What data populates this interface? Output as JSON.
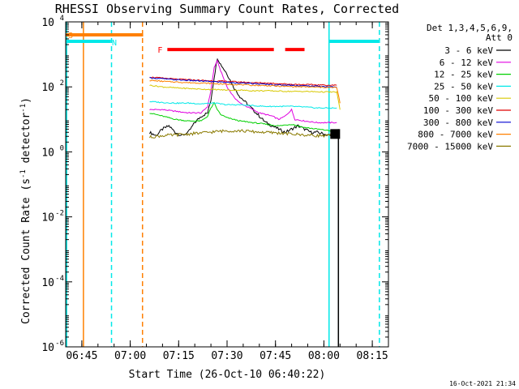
{
  "chart_data": {
    "type": "line",
    "title": "RHESSI Observing Summary Count Rates, Corrected",
    "xlabel": "Start Time (26-Oct-10 06:40:22)",
    "ylabel_main": "Corrected Count Rate (s",
    "ylabel_sup1": "-1",
    "ylabel_mid": " detector",
    "ylabel_sup2": "-1",
    "ylabel_end": ")",
    "yscale": "log",
    "ylim_exp": [
      -6,
      4
    ],
    "y_ticks": [
      {
        "exp": -6,
        "label": "10",
        "sup": "-6"
      },
      {
        "exp": -4,
        "label": "10",
        "sup": "-4"
      },
      {
        "exp": -2,
        "label": "10",
        "sup": "-2"
      },
      {
        "exp": 0,
        "label": "10",
        "sup": "0"
      },
      {
        "exp": 2,
        "label": "10",
        "sup": "2"
      },
      {
        "exp": 4,
        "label": "10",
        "sup": "4"
      }
    ],
    "xlim_min": [
      40,
      140
    ],
    "x_ticks": [
      {
        "min": 45,
        "label": "06:45"
      },
      {
        "min": 60,
        "label": "07:00"
      },
      {
        "min": 75,
        "label": "07:15"
      },
      {
        "min": 90,
        "label": "07:30"
      },
      {
        "min": 105,
        "label": "07:45"
      },
      {
        "min": 120,
        "label": "08:00"
      },
      {
        "min": 135,
        "label": "08:15"
      }
    ],
    "legend": {
      "header": [
        "Det 1,3,4,5,6,9,",
        "Att 0"
      ],
      "placement": "right",
      "entries": [
        {
          "label": "3 - 6 keV",
          "color": "#000000"
        },
        {
          "label": "6 - 12 keV",
          "color": "#e000e0"
        },
        {
          "label": "12 - 25 keV",
          "color": "#00d000"
        },
        {
          "label": "25 - 50 keV",
          "color": "#00e8e8"
        },
        {
          "label": "50 - 100 keV",
          "color": "#d8c800"
        },
        {
          "label": "100 - 300 keV",
          "color": "#e00000"
        },
        {
          "label": "300 - 800 keV",
          "color": "#0000d0"
        },
        {
          "label": "800 - 7000 keV",
          "color": "#ff8000"
        },
        {
          "label": "7000 - 15000 keV",
          "color": "#8a7a00"
        }
      ]
    },
    "intervals": {
      "saa": {
        "label": "S",
        "start": 40,
        "end": 64,
        "color": "#ff8000",
        "y_exp": 3.6
      },
      "night": {
        "label": "N",
        "start": 40,
        "end": 54,
        "color": "#00e8e8",
        "y_exp": 3.4
      },
      "night2": {
        "label": "",
        "start": 121.5,
        "end": 137,
        "color": "#00e8e8",
        "y_exp": 3.4
      },
      "flare": {
        "label": "F",
        "segments": [
          [
            71.5,
            104.5
          ],
          [
            108,
            114
          ]
        ],
        "color": "#ff0000",
        "y_exp": 3.15
      }
    },
    "vertical_lines": [
      {
        "min": 40.3,
        "color": "#00e8e8",
        "style": "solid"
      },
      {
        "min": 45.5,
        "color": "#ff8000",
        "style": "solid"
      },
      {
        "min": 54.2,
        "color": "#00e8e8",
        "style": "dashed"
      },
      {
        "min": 63.8,
        "color": "#ff8000",
        "style": "dashed"
      },
      {
        "min": 121.6,
        "color": "#00e8e8",
        "style": "solid"
      },
      {
        "min": 137.2,
        "color": "#00e8e8",
        "style": "dashed"
      }
    ],
    "series": [
      {
        "key": "3-6",
        "color": "#000000",
        "points": [
          [
            66,
            0.6
          ],
          [
            68,
            0.5
          ],
          [
            70,
            0.7
          ],
          [
            72,
            0.8
          ],
          [
            74,
            0.6
          ],
          [
            76,
            0.5
          ],
          [
            78,
            0.6
          ],
          [
            80,
            0.9
          ],
          [
            82,
            1.1
          ],
          [
            84,
            1.2
          ],
          [
            85,
            1.6
          ],
          [
            86,
            2.3
          ],
          [
            87,
            2.9
          ],
          [
            88,
            2.7
          ],
          [
            90,
            2.4
          ],
          [
            92,
            2.0
          ],
          [
            94,
            1.7
          ],
          [
            96,
            1.5
          ],
          [
            98,
            1.3
          ],
          [
            100,
            1.1
          ],
          [
            102,
            0.9
          ],
          [
            104,
            0.8
          ],
          [
            106,
            0.7
          ],
          [
            108,
            0.6
          ],
          [
            110,
            0.7
          ],
          [
            112,
            0.8
          ],
          [
            114,
            0.7
          ],
          [
            116,
            0.6
          ],
          [
            118,
            0.6
          ],
          [
            120,
            0.55
          ],
          [
            122,
            0.5
          ],
          [
            123,
            0.5
          ]
        ]
      },
      {
        "key": "6-12",
        "color": "#e000e0",
        "points": [
          [
            66,
            1.3
          ],
          [
            70,
            1.3
          ],
          [
            74,
            1.25
          ],
          [
            78,
            1.2
          ],
          [
            82,
            1.2
          ],
          [
            84,
            1.4
          ],
          [
            85,
            1.9
          ],
          [
            86,
            2.6
          ],
          [
            87,
            2.8
          ],
          [
            88,
            2.5
          ],
          [
            90,
            2.0
          ],
          [
            92,
            1.7
          ],
          [
            94,
            1.5
          ],
          [
            96,
            1.4
          ],
          [
            100,
            1.2
          ],
          [
            104,
            1.1
          ],
          [
            106,
            1.0
          ],
          [
            108,
            1.1
          ],
          [
            110,
            1.3
          ],
          [
            111,
            1.0
          ],
          [
            114,
            0.95
          ],
          [
            118,
            0.9
          ],
          [
            122,
            0.9
          ],
          [
            124,
            0.9
          ]
        ]
      },
      {
        "key": "12-25",
        "color": "#00d000",
        "points": [
          [
            66,
            1.2
          ],
          [
            70,
            1.1
          ],
          [
            74,
            1.0
          ],
          [
            78,
            0.95
          ],
          [
            82,
            0.95
          ],
          [
            84,
            1.1
          ],
          [
            85,
            1.35
          ],
          [
            86,
            1.5
          ],
          [
            87,
            1.3
          ],
          [
            88,
            1.15
          ],
          [
            90,
            1.05
          ],
          [
            94,
            0.95
          ],
          [
            98,
            0.9
          ],
          [
            102,
            0.85
          ],
          [
            106,
            0.8
          ],
          [
            110,
            0.85
          ],
          [
            114,
            0.75
          ],
          [
            118,
            0.7
          ],
          [
            122,
            0.65
          ],
          [
            124,
            0.6
          ]
        ]
      },
      {
        "key": "25-50",
        "color": "#00e8e8",
        "points": [
          [
            66,
            1.55
          ],
          [
            70,
            1.52
          ],
          [
            74,
            1.5
          ],
          [
            78,
            1.5
          ],
          [
            82,
            1.48
          ],
          [
            86,
            1.5
          ],
          [
            90,
            1.45
          ],
          [
            94,
            1.45
          ],
          [
            98,
            1.42
          ],
          [
            102,
            1.4
          ],
          [
            106,
            1.4
          ],
          [
            110,
            1.4
          ],
          [
            114,
            1.38
          ],
          [
            118,
            1.35
          ],
          [
            122,
            1.35
          ],
          [
            124,
            1.35
          ]
        ]
      },
      {
        "key": "50-100",
        "color": "#d8c800",
        "points": [
          [
            66,
            2.05
          ],
          [
            70,
            2.0
          ],
          [
            74,
            1.97
          ],
          [
            78,
            1.95
          ],
          [
            82,
            1.93
          ],
          [
            86,
            1.92
          ],
          [
            90,
            1.9
          ],
          [
            94,
            1.9
          ],
          [
            98,
            1.88
          ],
          [
            102,
            1.88
          ],
          [
            106,
            1.87
          ],
          [
            110,
            1.86
          ],
          [
            114,
            1.86
          ],
          [
            118,
            1.85
          ],
          [
            122,
            1.84
          ],
          [
            124,
            1.84
          ],
          [
            125,
            1.3
          ]
        ]
      },
      {
        "key": "100-300",
        "color": "#e00000",
        "points": [
          [
            66,
            2.3
          ],
          [
            70,
            2.27
          ],
          [
            74,
            2.24
          ],
          [
            78,
            2.22
          ],
          [
            82,
            2.2
          ],
          [
            86,
            2.18
          ],
          [
            90,
            2.17
          ],
          [
            94,
            2.15
          ],
          [
            98,
            2.13
          ],
          [
            102,
            2.12
          ],
          [
            106,
            2.1
          ],
          [
            110,
            2.08
          ],
          [
            114,
            2.07
          ],
          [
            118,
            2.06
          ],
          [
            122,
            2.05
          ],
          [
            124,
            2.05
          ]
        ]
      },
      {
        "key": "300-800",
        "color": "#0000d0",
        "points": [
          [
            66,
            2.28
          ],
          [
            70,
            2.25
          ],
          [
            74,
            2.22
          ],
          [
            78,
            2.2
          ],
          [
            82,
            2.18
          ],
          [
            86,
            2.16
          ],
          [
            90,
            2.14
          ],
          [
            94,
            2.12
          ],
          [
            98,
            2.1
          ],
          [
            102,
            2.08
          ],
          [
            106,
            2.06
          ],
          [
            110,
            2.05
          ],
          [
            114,
            2.03
          ],
          [
            118,
            2.02
          ],
          [
            122,
            2.0
          ],
          [
            124,
            2.0
          ]
        ]
      },
      {
        "key": "800-7000",
        "color": "#ff8000",
        "points": [
          [
            66,
            2.2
          ],
          [
            70,
            2.17
          ],
          [
            74,
            2.15
          ],
          [
            78,
            2.13
          ],
          [
            82,
            2.12
          ],
          [
            86,
            2.1
          ],
          [
            90,
            2.08
          ],
          [
            94,
            2.07
          ],
          [
            98,
            2.05
          ],
          [
            102,
            2.04
          ],
          [
            106,
            2.02
          ],
          [
            110,
            2.01
          ],
          [
            114,
            2.0
          ],
          [
            118,
            1.99
          ],
          [
            122,
            1.98
          ],
          [
            124,
            1.98
          ],
          [
            125,
            1.5
          ]
        ]
      },
      {
        "key": "7000-15000",
        "color": "#8a7a00",
        "points": [
          [
            66,
            0.45
          ],
          [
            70,
            0.5
          ],
          [
            74,
            0.52
          ],
          [
            78,
            0.55
          ],
          [
            82,
            0.58
          ],
          [
            86,
            0.62
          ],
          [
            90,
            0.65
          ],
          [
            94,
            0.65
          ],
          [
            98,
            0.62
          ],
          [
            102,
            0.6
          ],
          [
            106,
            0.58
          ],
          [
            110,
            0.55
          ],
          [
            114,
            0.52
          ],
          [
            118,
            0.5
          ],
          [
            122,
            0.5
          ],
          [
            124,
            0.5
          ]
        ]
      }
    ],
    "black_drop": {
      "x_min": 123.5,
      "x_max": 124.5,
      "top_exp": 0.7,
      "bottom_exp": -6
    }
  },
  "footer": {
    "timestamp": "16-Oct-2021 21:34"
  }
}
